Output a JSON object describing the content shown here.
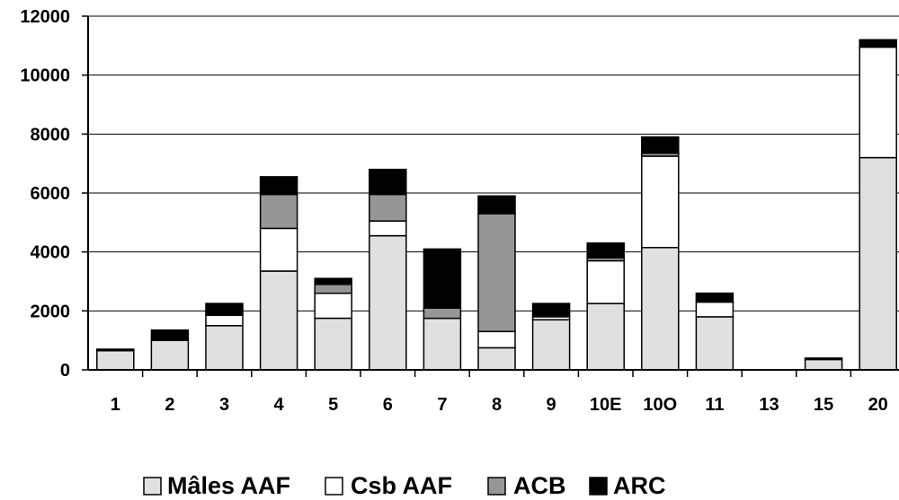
{
  "chart_data": {
    "type": "bar",
    "stacked": true,
    "categories": [
      "1",
      "2",
      "3",
      "4",
      "5",
      "6",
      "7",
      "8",
      "9",
      "10E",
      "10O",
      "11",
      "13",
      "15",
      "20"
    ],
    "series": [
      {
        "name": "Mâles AAF",
        "color": "#e0e0e0",
        "values": [
          650,
          1000,
          1500,
          3350,
          1750,
          4550,
          1750,
          750,
          1700,
          2250,
          4150,
          1800,
          0,
          350,
          7200
        ]
      },
      {
        "name": "Csb AAF",
        "color": "#ffffff",
        "values": [
          0,
          0,
          350,
          1450,
          850,
          500,
          0,
          550,
          100,
          1450,
          3100,
          500,
          0,
          0,
          3750
        ]
      },
      {
        "name": "ACB",
        "color": "#969696",
        "values": [
          0,
          0,
          50,
          1150,
          300,
          900,
          350,
          4000,
          50,
          100,
          100,
          0,
          0,
          0,
          0
        ]
      },
      {
        "name": "ARC",
        "color": "#000000",
        "values": [
          50,
          350,
          350,
          600,
          200,
          850,
          2000,
          600,
          400,
          500,
          550,
          300,
          0,
          50,
          250
        ]
      }
    ],
    "yticks": [
      "0",
      "2000",
      "4000",
      "6000",
      "8000",
      "10000",
      "12000"
    ],
    "ylim": [
      0,
      12000
    ],
    "grid": true,
    "legend_position": "bottom"
  }
}
